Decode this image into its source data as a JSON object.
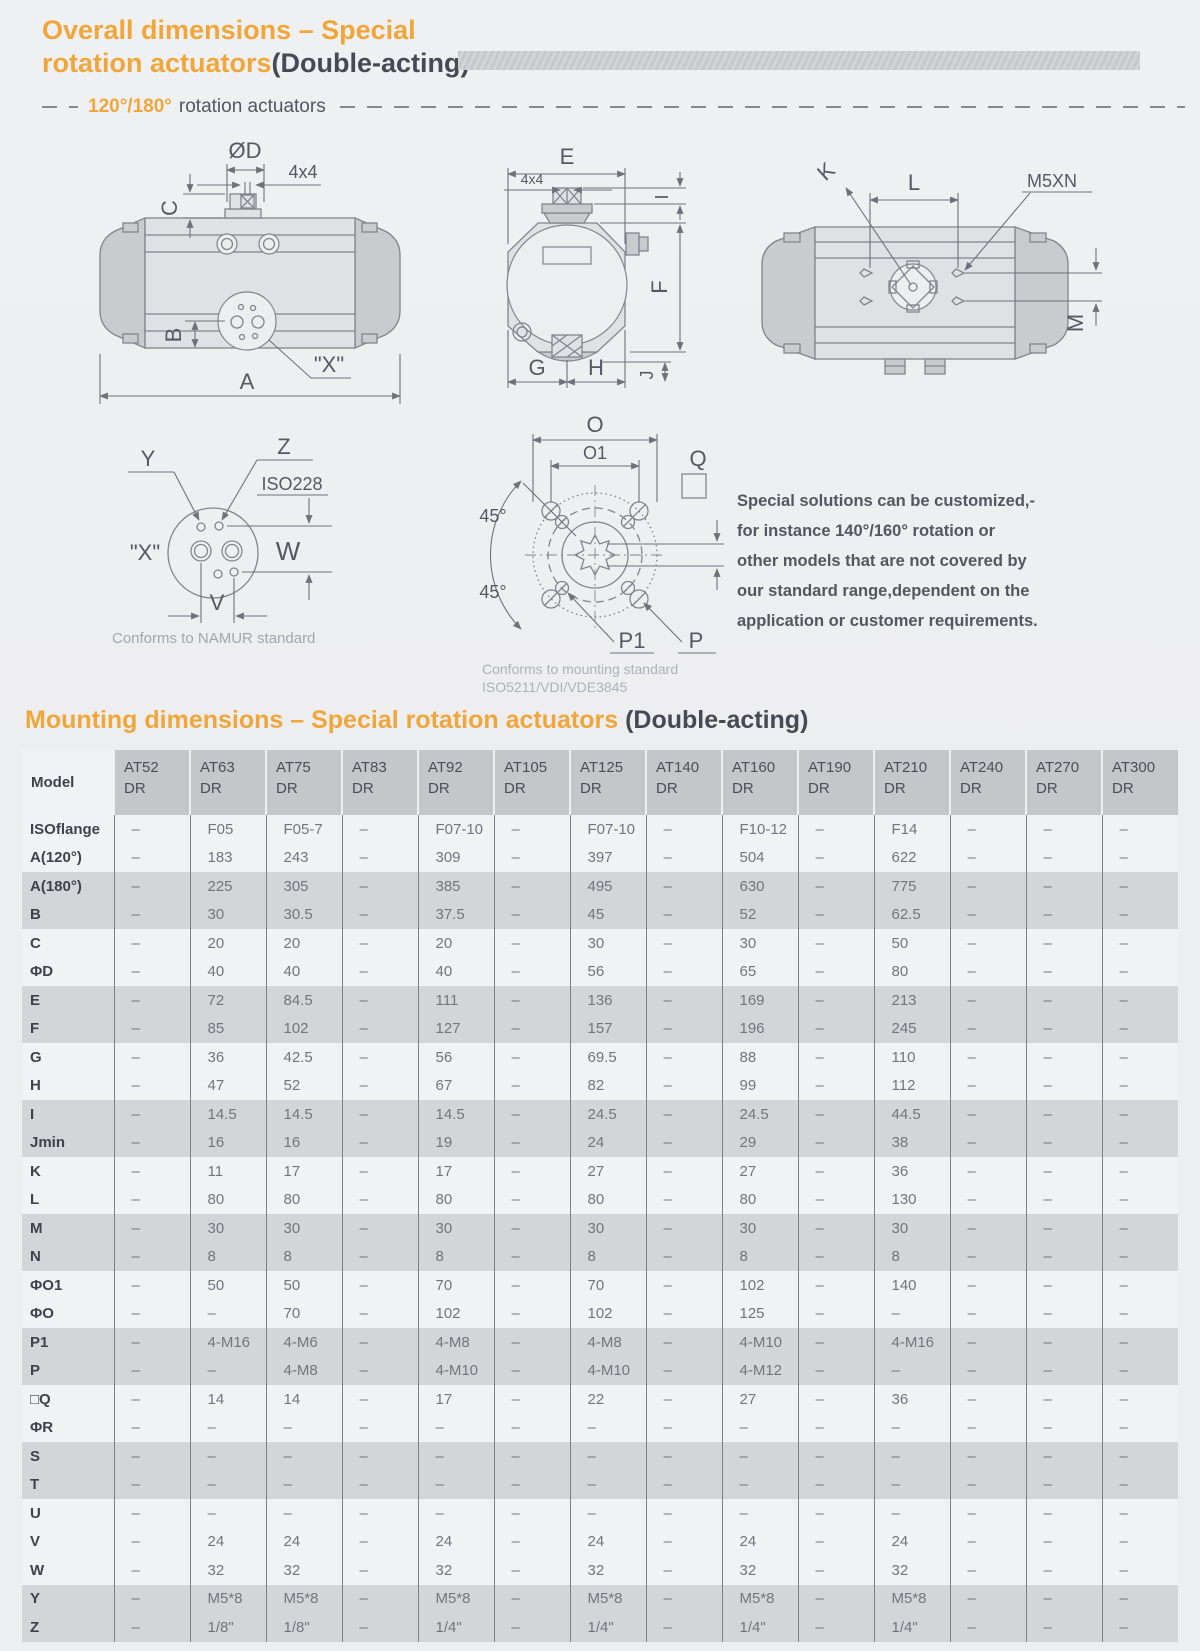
{
  "page": {
    "title_line1": "Overall dimensions – Special",
    "title_line2_orange": "rotation actuators",
    "title_line2_dark": "(Double-acting)",
    "subtitle_degrees": "120°/180°",
    "subtitle_text": "rotation actuators",
    "note_lines": [
      "Special solutions can be customized,-",
      "for instance 140°/160° rotation or",
      "other models that are not covered by",
      "our standard range,dependent on the",
      "application or customer requirements."
    ],
    "section2_orange": "Mounting dimensions – Special rotation actuators",
    "section2_dark": " (Double-acting)"
  },
  "diagrams": {
    "front": {
      "dia": "ØD",
      "k4": "4x4",
      "c": "C",
      "b": "B",
      "a": "A",
      "x": "\"X\""
    },
    "end": {
      "e": "E",
      "k4": "4x4",
      "i": "I",
      "f": "F",
      "g": "G",
      "h": "H",
      "j": "J"
    },
    "top": {
      "k": "K",
      "l": "L",
      "m5xn": "M5XN",
      "m": "M"
    },
    "namur": {
      "y": "Y",
      "z": "Z",
      "iso": "ISO228",
      "x": "\"X\"",
      "w": "W",
      "v": "V",
      "caption": "Conforms to NAMUR standard"
    },
    "flange": {
      "o": "O",
      "o1": "O1",
      "q": "Q",
      "a45a": "45°",
      "a45b": "45°",
      "p1": "P1",
      "p": "P",
      "caption1": "Conforms to mounting standard",
      "caption2": "ISO5211/VDI/VDE3845"
    }
  },
  "table": {
    "model_header": "Model",
    "columns": [
      {
        "model": "AT52",
        "type": "DR"
      },
      {
        "model": "AT63",
        "type": "DR"
      },
      {
        "model": "AT75",
        "type": "DR"
      },
      {
        "model": "AT83",
        "type": "DR"
      },
      {
        "model": "AT92",
        "type": "DR"
      },
      {
        "model": "AT105",
        "type": "DR"
      },
      {
        "model": "AT125",
        "type": "DR"
      },
      {
        "model": "AT140",
        "type": "DR"
      },
      {
        "model": "AT160",
        "type": "DR"
      },
      {
        "model": "AT190",
        "type": "DR"
      },
      {
        "model": "AT210",
        "type": "DR"
      },
      {
        "model": "AT240",
        "type": "DR"
      },
      {
        "model": "AT270",
        "type": "DR"
      },
      {
        "model": "AT300",
        "type": "DR"
      }
    ],
    "rows": [
      {
        "label": "ISOflange",
        "shaded": false,
        "values": [
          "–",
          "F05",
          "F05-7",
          "–",
          "F07-10",
          "–",
          "F07-10",
          "–",
          "F10-12",
          "–",
          "F14",
          "–",
          "–",
          "–"
        ]
      },
      {
        "label": "A(120°)",
        "shaded": false,
        "values": [
          "–",
          "183",
          "243",
          "–",
          "309",
          "–",
          "397",
          "–",
          "504",
          "–",
          "622",
          "–",
          "–",
          "–"
        ]
      },
      {
        "label": "A(180°)",
        "shaded": true,
        "values": [
          "–",
          "225",
          "305",
          "–",
          "385",
          "–",
          "495",
          "–",
          "630",
          "–",
          "775",
          "–",
          "–",
          "–"
        ]
      },
      {
        "label": "B",
        "shaded": true,
        "values": [
          "–",
          "30",
          "30.5",
          "–",
          "37.5",
          "–",
          "45",
          "–",
          "52",
          "–",
          "62.5",
          "–",
          "–",
          "–"
        ]
      },
      {
        "label": "C",
        "shaded": false,
        "values": [
          "–",
          "20",
          "20",
          "–",
          "20",
          "–",
          "30",
          "–",
          "30",
          "–",
          "50",
          "–",
          "–",
          "–"
        ]
      },
      {
        "label": "ΦD",
        "shaded": false,
        "values": [
          "–",
          "40",
          "40",
          "–",
          "40",
          "–",
          "56",
          "–",
          "65",
          "–",
          "80",
          "–",
          "–",
          "–"
        ]
      },
      {
        "label": "E",
        "shaded": true,
        "values": [
          "–",
          "72",
          "84.5",
          "–",
          "111",
          "–",
          "136",
          "–",
          "169",
          "–",
          "213",
          "–",
          "–",
          "–"
        ]
      },
      {
        "label": "F",
        "shaded": true,
        "values": [
          "–",
          "85",
          "102",
          "–",
          "127",
          "–",
          "157",
          "–",
          "196",
          "–",
          "245",
          "–",
          "–",
          "–"
        ]
      },
      {
        "label": "G",
        "shaded": false,
        "values": [
          "–",
          "36",
          "42.5",
          "–",
          "56",
          "–",
          "69.5",
          "–",
          "88",
          "–",
          "110",
          "–",
          "–",
          "–"
        ]
      },
      {
        "label": "H",
        "shaded": false,
        "values": [
          "–",
          "47",
          "52",
          "–",
          "67",
          "–",
          "82",
          "–",
          "99",
          "–",
          "112",
          "–",
          "–",
          "–"
        ]
      },
      {
        "label": "I",
        "shaded": true,
        "values": [
          "–",
          "14.5",
          "14.5",
          "–",
          "14.5",
          "–",
          "24.5",
          "–",
          "24.5",
          "–",
          "44.5",
          "–",
          "–",
          "–"
        ]
      },
      {
        "label": "Jmin",
        "shaded": true,
        "values": [
          "–",
          "16",
          "16",
          "–",
          "19",
          "–",
          "24",
          "–",
          "29",
          "–",
          "38",
          "–",
          "–",
          "–"
        ]
      },
      {
        "label": "K",
        "shaded": false,
        "values": [
          "–",
          "11",
          "17",
          "–",
          "17",
          "–",
          "27",
          "–",
          "27",
          "–",
          "36",
          "–",
          "–",
          "–"
        ]
      },
      {
        "label": "L",
        "shaded": false,
        "values": [
          "–",
          "80",
          "80",
          "–",
          "80",
          "–",
          "80",
          "–",
          "80",
          "–",
          "130",
          "–",
          "–",
          "–"
        ]
      },
      {
        "label": "M",
        "shaded": true,
        "values": [
          "–",
          "30",
          "30",
          "–",
          "30",
          "–",
          "30",
          "–",
          "30",
          "–",
          "30",
          "–",
          "–",
          "–"
        ]
      },
      {
        "label": "N",
        "shaded": true,
        "values": [
          "–",
          "8",
          "8",
          "–",
          "8",
          "–",
          "8",
          "–",
          "8",
          "–",
          "8",
          "–",
          "–",
          "–"
        ]
      },
      {
        "label": "ΦO1",
        "shaded": false,
        "values": [
          "–",
          "50",
          "50",
          "–",
          "70",
          "–",
          "70",
          "–",
          "102",
          "–",
          "140",
          "–",
          "–",
          "–"
        ]
      },
      {
        "label": "ΦO",
        "shaded": false,
        "values": [
          "–",
          "–",
          "70",
          "–",
          "102",
          "–",
          "102",
          "–",
          "125",
          "–",
          "–",
          "–",
          "–",
          "–"
        ]
      },
      {
        "label": "P1",
        "shaded": true,
        "values": [
          "–",
          "4-M16",
          "4-M6",
          "–",
          "4-M8",
          "–",
          "4-M8",
          "–",
          "4-M10",
          "–",
          "4-M16",
          "–",
          "–",
          "–"
        ]
      },
      {
        "label": "P",
        "shaded": true,
        "values": [
          "–",
          "–",
          "4-M8",
          "–",
          "4-M10",
          "–",
          "4-M10",
          "–",
          "4-M12",
          "–",
          "–",
          "–",
          "–",
          "–"
        ]
      },
      {
        "label": "□Q",
        "shaded": false,
        "values": [
          "–",
          "14",
          "14",
          "–",
          "17",
          "–",
          "22",
          "–",
          "27",
          "–",
          "36",
          "–",
          "–",
          "–"
        ]
      },
      {
        "label": "ΦR",
        "shaded": false,
        "values": [
          "–",
          "–",
          "–",
          "–",
          "–",
          "–",
          "–",
          "–",
          "–",
          "–",
          "–",
          "–",
          "–",
          "–"
        ]
      },
      {
        "label": "S",
        "shaded": true,
        "values": [
          "–",
          "–",
          "–",
          "–",
          "–",
          "–",
          "–",
          "–",
          "–",
          "–",
          "–",
          "–",
          "–",
          "–"
        ]
      },
      {
        "label": "T",
        "shaded": true,
        "values": [
          "–",
          "–",
          "–",
          "–",
          "–",
          "–",
          "–",
          "–",
          "–",
          "–",
          "–",
          "–",
          "–",
          "–"
        ]
      },
      {
        "label": "U",
        "shaded": false,
        "values": [
          "–",
          "–",
          "–",
          "–",
          "–",
          "–",
          "–",
          "–",
          "–",
          "–",
          "–",
          "–",
          "–",
          "–"
        ]
      },
      {
        "label": "V",
        "shaded": false,
        "values": [
          "–",
          "24",
          "24",
          "–",
          "24",
          "–",
          "24",
          "–",
          "24",
          "–",
          "24",
          "–",
          "–",
          "–"
        ]
      },
      {
        "label": "W",
        "shaded": false,
        "values": [
          "–",
          "32",
          "32",
          "–",
          "32",
          "–",
          "32",
          "–",
          "32",
          "–",
          "32",
          "–",
          "–",
          "–"
        ]
      },
      {
        "label": "Y",
        "shaded": true,
        "values": [
          "–",
          "M5*8",
          "M5*8",
          "–",
          "M5*8",
          "–",
          "M5*8",
          "–",
          "M5*8",
          "–",
          "M5*8",
          "–",
          "–",
          "–"
        ]
      },
      {
        "label": "Z",
        "shaded": true,
        "values": [
          "–",
          "1/8\"",
          "1/8\"",
          "–",
          "1/4\"",
          "–",
          "1/4\"",
          "–",
          "1/4\"",
          "–",
          "1/4\"",
          "–",
          "–",
          "–"
        ]
      }
    ]
  }
}
